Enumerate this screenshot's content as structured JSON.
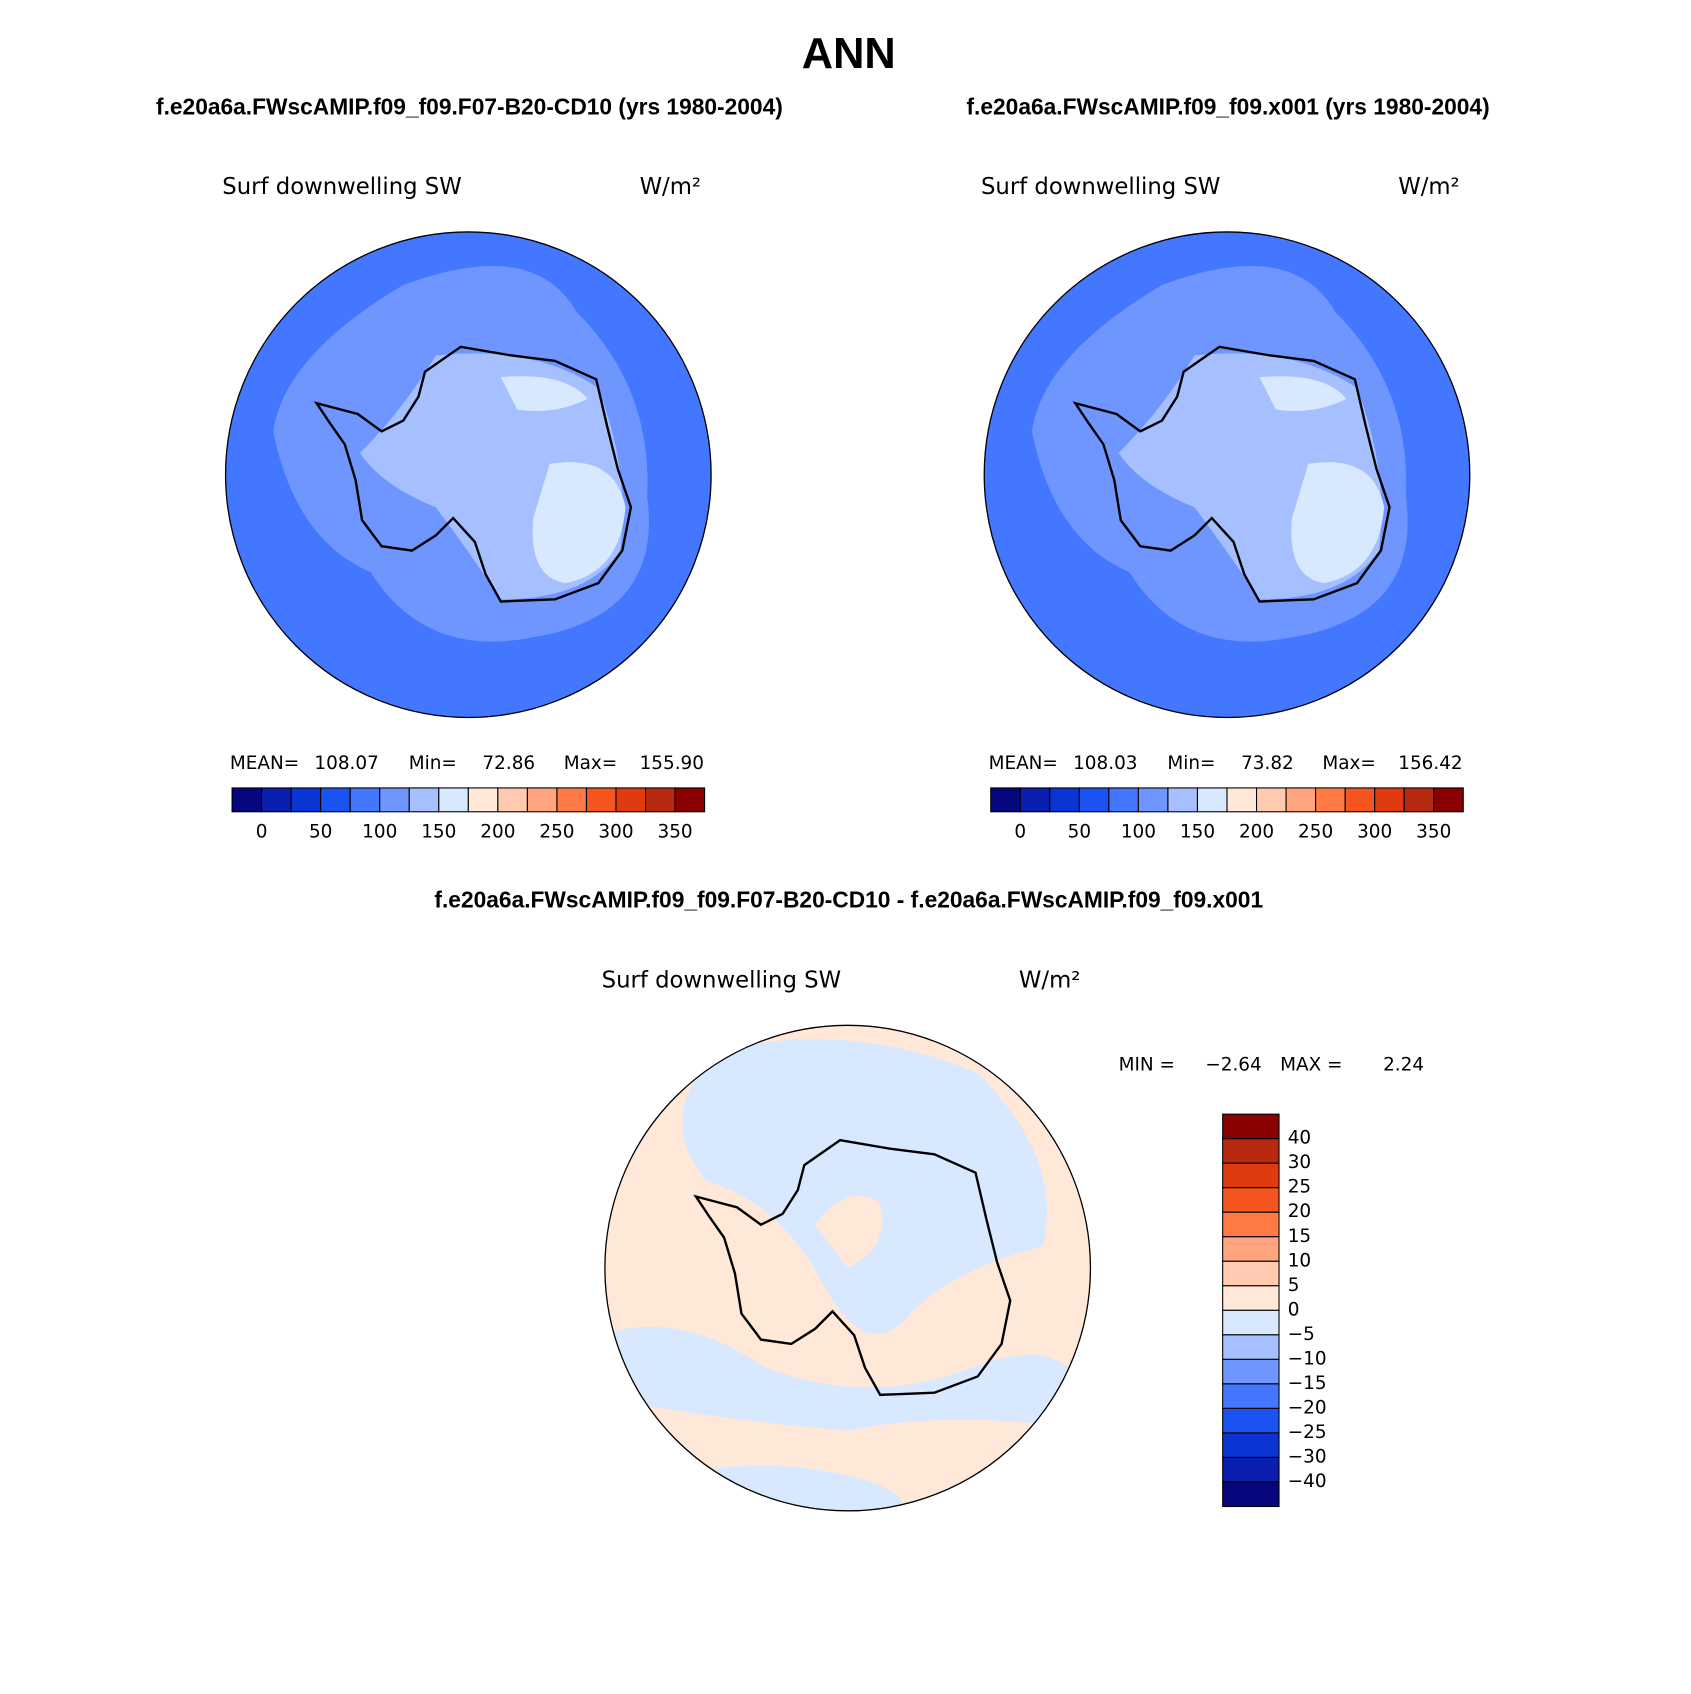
{
  "title": "ANN",
  "panels": [
    {
      "case": "f.e20a6a.FWscAMIP.f09_f09.F07-B20-CD10 (yrs 1980-2004)",
      "variable": "Surf downwelling SW",
      "units": "W/m²",
      "stats": [
        {
          "label": "MEAN=",
          "value": "108.07"
        },
        {
          "label": "Min=",
          "value": "72.86"
        },
        {
          "label": "Max=",
          "value": "155.90"
        }
      ]
    },
    {
      "case": "f.e20a6a.FWscAMIP.f09_f09.x001 (yrs 1980-2004)",
      "variable": "Surf downwelling SW",
      "units": "W/m²",
      "stats": [
        {
          "label": "MEAN=",
          "value": "108.03"
        },
        {
          "label": "Min=",
          "value": "73.82"
        },
        {
          "label": "Max=",
          "value": "156.42"
        }
      ]
    }
  ],
  "colorbar": {
    "colors": [
      "#06067e",
      "#0a1fb0",
      "#0a35d4",
      "#1b52f2",
      "#4477ff",
      "#6f96ff",
      "#a6c0ff",
      "#d8e9ff",
      "#ffe8d8",
      "#ffcab0",
      "#ffa47c",
      "#ff7a45",
      "#f55620",
      "#e03a10",
      "#b82a10",
      "#8b0000"
    ],
    "labels": [
      "0",
      "50",
      "100",
      "150",
      "200",
      "250",
      "300",
      "350"
    ]
  },
  "difference": {
    "title": "f.e20a6a.FWscAMIP.f09_f09.F07-B20-CD10 - f.e20a6a.FWscAMIP.f09_f09.x001",
    "variable": "Surf downwelling SW",
    "units": "W/m²",
    "stats": [
      {
        "label": "MIN =",
        "value": "−2.64"
      },
      {
        "label": "MAX =",
        "value": "2.24"
      }
    ],
    "colorbar": {
      "colors": [
        "#8b0000",
        "#b82a10",
        "#e03a10",
        "#f55620",
        "#ff7a45",
        "#ffa47c",
        "#ffcab0",
        "#ffe8d8",
        "#d8e9ff",
        "#a6c0ff",
        "#6f96ff",
        "#4477ff",
        "#1b52f2",
        "#0a35d4",
        "#0a1fb0",
        "#06067e"
      ],
      "labels": [
        "40",
        "30",
        "25",
        "20",
        "15",
        "10",
        "5",
        "0",
        "−5",
        "−10",
        "−15",
        "−20",
        "−25",
        "−30",
        "−40"
      ]
    }
  }
}
